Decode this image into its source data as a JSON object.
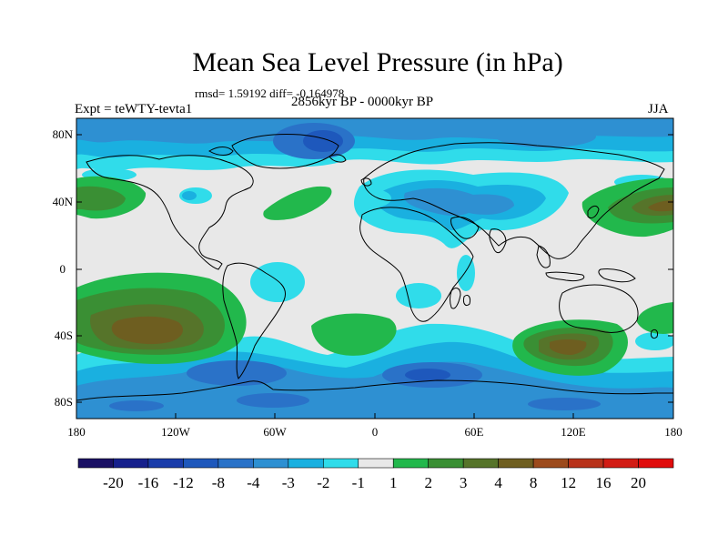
{
  "title": "Mean Sea Level Pressure (in hPa)",
  "stats": "rmsd= 1.59192 diff= -0.164978",
  "experiment": "Expt = teWTY-tevta1",
  "period": "2856kyr BP - 0000kyr BP",
  "season": "JJA",
  "lat_labels": [
    "80N",
    "40N",
    "0",
    "40S",
    "80S"
  ],
  "lon_labels": [
    "180",
    "120W",
    "60W",
    "0",
    "60E",
    "120E",
    "180"
  ],
  "colorbar": {
    "labels": [
      "-20",
      "-16",
      "-12",
      "-8",
      "-4",
      "-3",
      "-2",
      "-1",
      "1",
      "2",
      "3",
      "4",
      "8",
      "12",
      "16",
      "20"
    ],
    "colors": [
      "#1a1064",
      "#16208c",
      "#1a3caa",
      "#1e58bc",
      "#2a72c8",
      "#2e90d2",
      "#1ab0e0",
      "#30dcea",
      "#e8e8e8",
      "#22b84c",
      "#3a8f34",
      "#56742a",
      "#6e5e20",
      "#9c4a1c",
      "#b8321a",
      "#d21c14",
      "#e00c0c"
    ]
  },
  "colors": {
    "neutral": "#e8e8e8",
    "coast": "#000000"
  }
}
